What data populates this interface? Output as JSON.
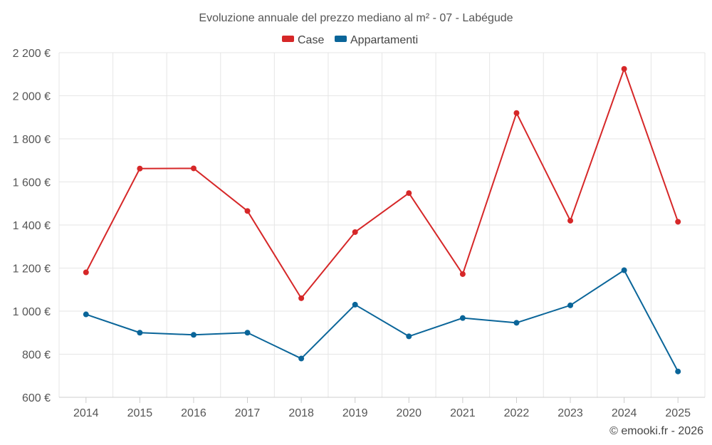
{
  "chart_data": {
    "type": "line",
    "title": "Evoluzione annuale del prezzo mediano al m² - 07 - Labégude",
    "xlabel": "",
    "ylabel": "",
    "categories": [
      "2014",
      "2015",
      "2016",
      "2017",
      "2018",
      "2019",
      "2020",
      "2021",
      "2022",
      "2023",
      "2024",
      "2025"
    ],
    "series": [
      {
        "name": "Case",
        "color": "#d62728",
        "values": [
          1180,
          1662,
          1663,
          1465,
          1060,
          1367,
          1548,
          1172,
          1920,
          1420,
          2125,
          1415
        ]
      },
      {
        "name": "Appartamenti",
        "color": "#0a6599",
        "values": [
          985,
          900,
          890,
          900,
          780,
          1030,
          883,
          968,
          946,
          1027,
          1190,
          720
        ]
      }
    ],
    "ylim": [
      600,
      2200
    ],
    "yticks": [
      600,
      800,
      1000,
      1200,
      1400,
      1600,
      1800,
      2000,
      2200
    ],
    "ytick_labels": [
      "600 €",
      "800 €",
      "1 000 €",
      "1 200 €",
      "1 400 €",
      "1 600 €",
      "1 800 €",
      "2 000 €",
      "2 200 €"
    ],
    "grid": true,
    "legend": "top-center"
  },
  "credit": "© emooki.fr - 2026"
}
